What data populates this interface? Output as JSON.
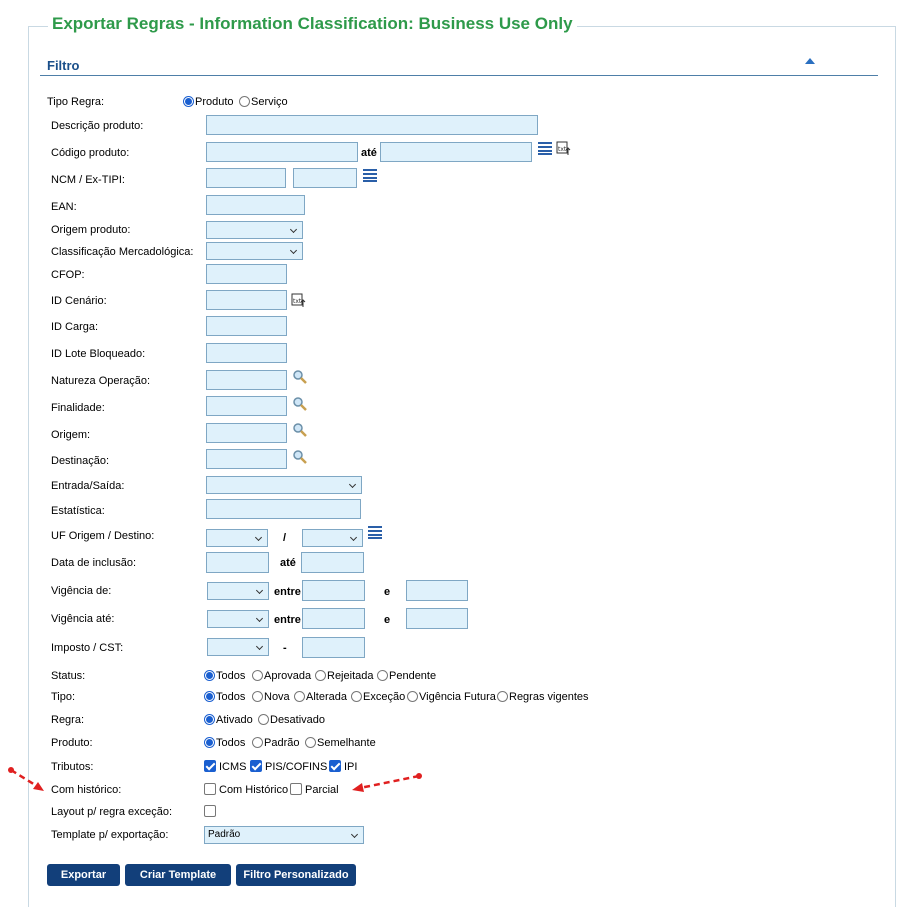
{
  "title": "Exportar Regras - Information Classification: Business Use Only",
  "section": "Filtro",
  "tipo_regra": {
    "label": "Tipo Regra:",
    "options": [
      "Produto",
      "Serviço"
    ]
  },
  "fields": {
    "descricao": "Descrição produto:",
    "codigo": "Código produto:",
    "ate": "até",
    "ncm": "NCM / Ex-TIPI:",
    "ean": "EAN:",
    "origem_produto": "Origem produto:",
    "classificacao": "Classificação Mercadológica:",
    "cfop": "CFOP:",
    "id_cenario": "ID Cenário:",
    "id_carga": "ID Carga:",
    "id_lote": "ID Lote Bloqueado:",
    "natureza": "Natureza Operação:",
    "finalidade": "Finalidade:",
    "origem": "Origem:",
    "destinacao": "Destinação:",
    "entrada_saida": "Entrada/Saída:",
    "estatistica": "Estatística:",
    "uf": "UF Origem / Destino:",
    "uf_sep": "/",
    "data_inclusao": "Data de inclusão:",
    "vig_de": "Vigência de:",
    "vig_ate": "Vigência até:",
    "entre": "entre",
    "e": "e",
    "imposto": "Imposto / CST:",
    "dash": "-"
  },
  "status": {
    "label": "Status:",
    "options": [
      "Todos",
      "Aprovada",
      "Rejeitada",
      "Pendente"
    ]
  },
  "tipo": {
    "label": "Tipo:",
    "options": [
      "Todos",
      "Nova",
      "Alterada",
      "Exceção",
      "Vigência Futura",
      "Regras vigentes"
    ]
  },
  "regra": {
    "label": "Regra:",
    "options": [
      "Ativado",
      "Desativado"
    ]
  },
  "produto": {
    "label": "Produto:",
    "options": [
      "Todos",
      "Padrão",
      "Semelhante"
    ]
  },
  "tributos": {
    "label": "Tributos:",
    "options": [
      "ICMS",
      "PIS/COFINS",
      "IPI"
    ]
  },
  "historico": {
    "label": "Com histórico:",
    "options": [
      "Com Histórico",
      "Parcial"
    ]
  },
  "layout_excecao": {
    "label": "Layout p/ regra exceção:"
  },
  "template": {
    "label": "Template p/ exportação:",
    "value": "Padrão"
  },
  "buttons": {
    "exportar": "Exportar",
    "criar_template": "Criar Template",
    "filtro_personalizado": "Filtro Personalizado"
  },
  "colors": {
    "title": "#2e9a4a",
    "section": "#1a4f8a",
    "button": "#123f7a",
    "input_bg": "#dff1fb",
    "annotation": "#e02020"
  }
}
